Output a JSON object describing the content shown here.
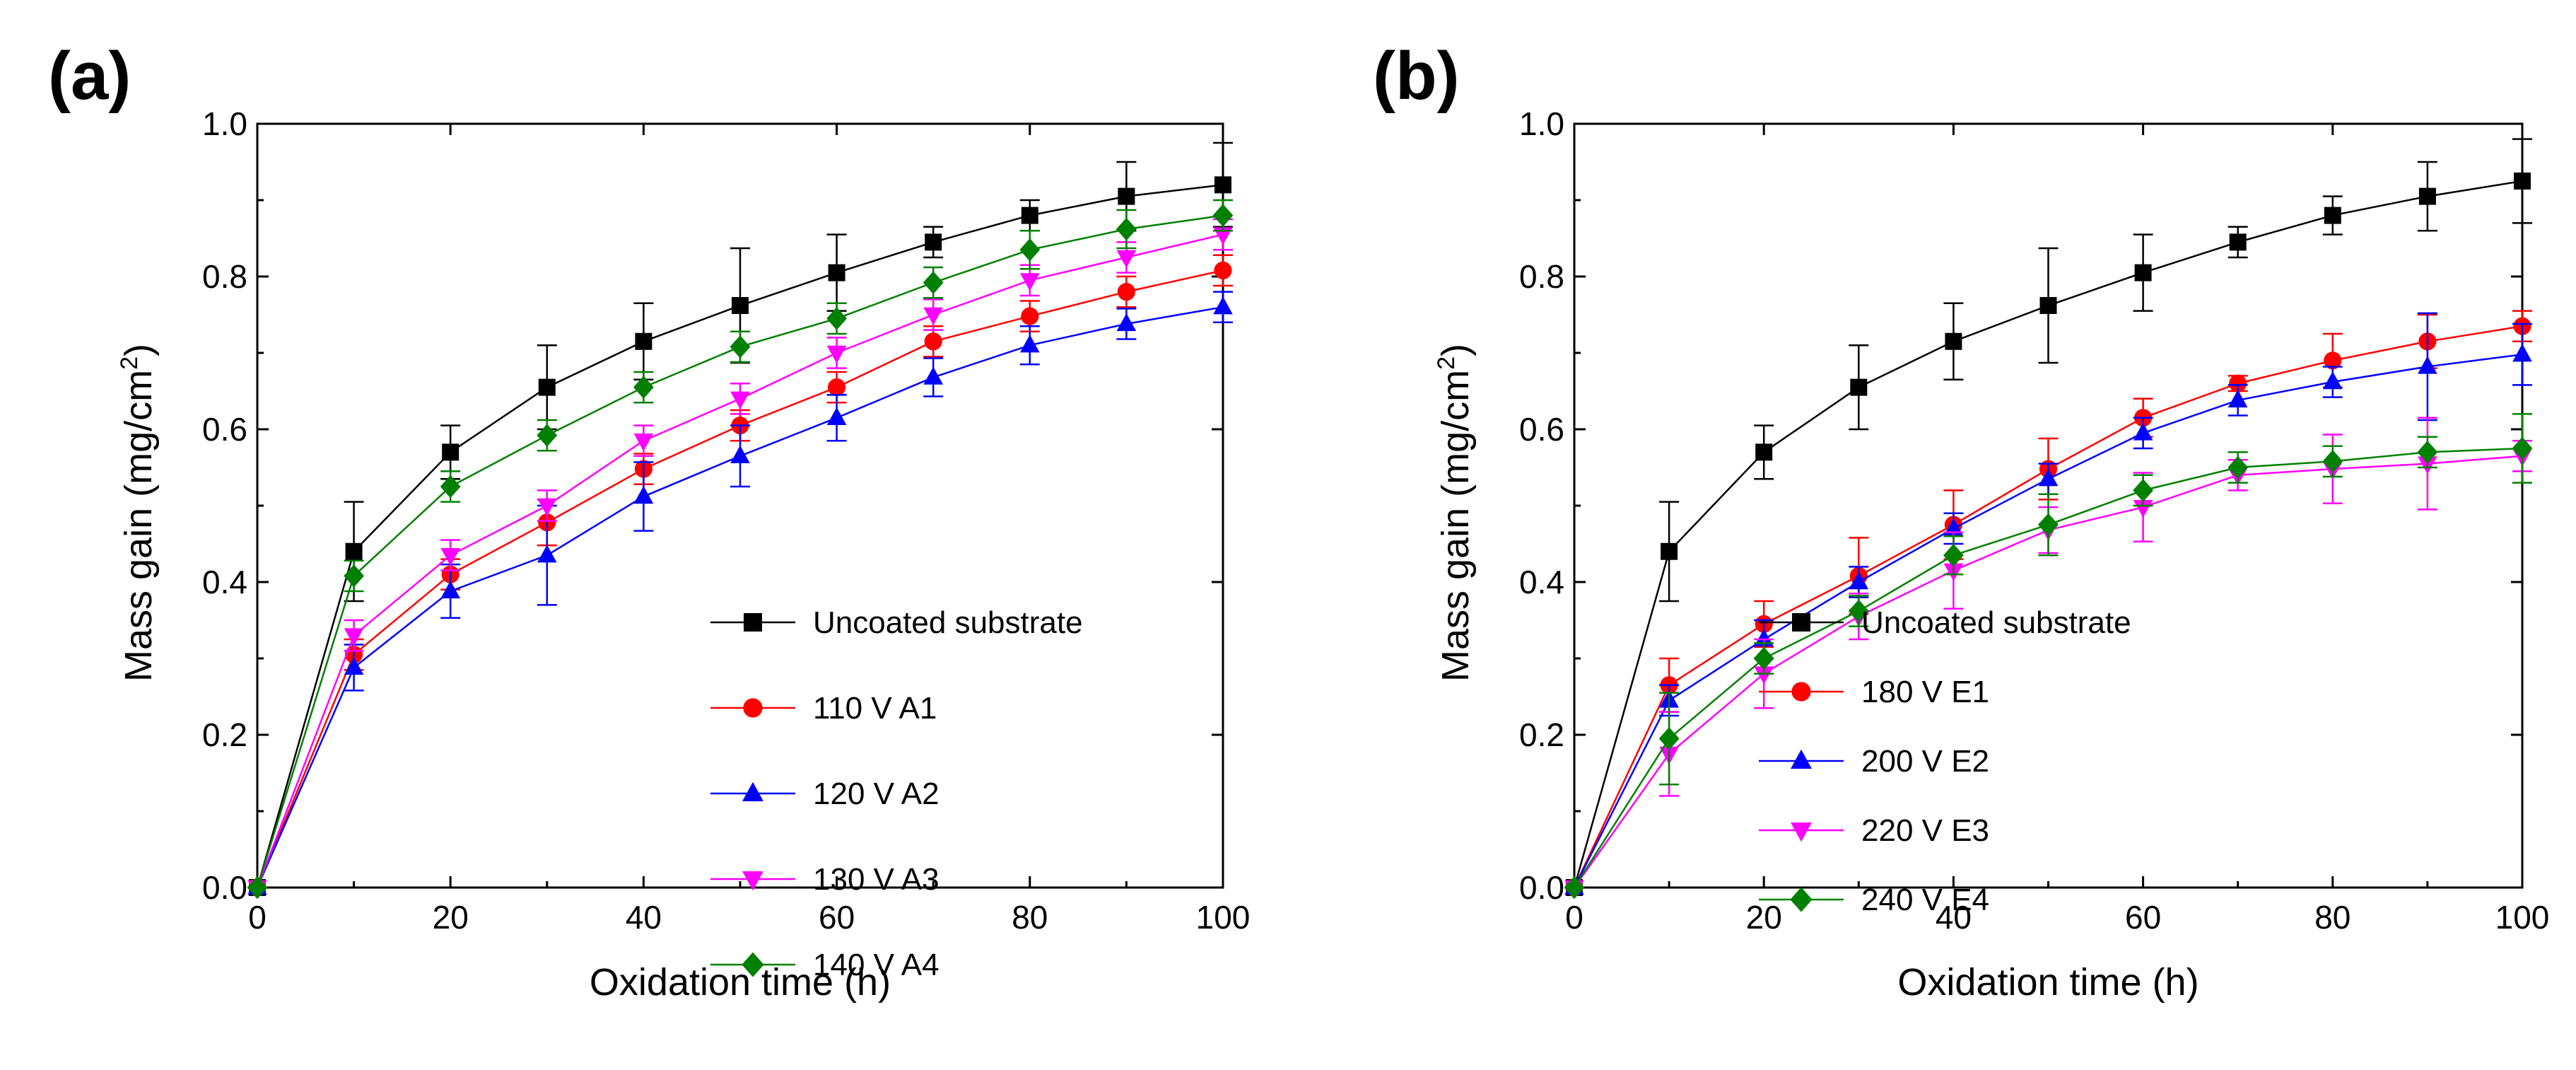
{
  "chart_data": [
    {
      "type": "line",
      "panel_label": "(a)",
      "xlabel": "Oxidation time (h)",
      "ylabel_main": "Mass gain (mg/cm",
      "ylabel_sup": "2",
      "ylabel_close": ")",
      "xlim": [
        0,
        100
      ],
      "ylim": [
        0.0,
        1.0
      ],
      "xticks": [
        "0",
        "20",
        "40",
        "60",
        "80",
        "100"
      ],
      "yticks": [
        "0.0",
        "0.2",
        "0.4",
        "0.6",
        "0.8",
        "1.0"
      ],
      "legend_position": "center-right",
      "x": [
        0,
        10,
        20,
        30,
        40,
        50,
        60,
        70,
        80,
        90,
        100
      ],
      "series": [
        {
          "name": "Uncoated substrate",
          "color": "#000000",
          "marker": "square",
          "values": [
            0.0,
            0.44,
            0.57,
            0.655,
            0.715,
            0.762,
            0.805,
            0.845,
            0.88,
            0.905,
            0.92
          ],
          "errors": [
            0,
            0.065,
            0.035,
            0.055,
            0.05,
            0.075,
            0.05,
            0.02,
            0.02,
            0.045,
            0.055
          ]
        },
        {
          "name": "110 V A1",
          "color": "#ff0000",
          "marker": "circle",
          "values": [
            0.0,
            0.305,
            0.41,
            0.478,
            0.548,
            0.605,
            0.655,
            0.715,
            0.748,
            0.78,
            0.808
          ],
          "errors": [
            0,
            0.02,
            0.02,
            0.03,
            0.02,
            0.02,
            0.02,
            0.02,
            0.02,
            0.02,
            0.02
          ]
        },
        {
          "name": "120 V A2",
          "color": "#0000ff",
          "marker": "triangle-up",
          "values": [
            0.0,
            0.288,
            0.388,
            0.435,
            0.512,
            0.565,
            0.615,
            0.668,
            0.71,
            0.738,
            0.76
          ],
          "errors": [
            0,
            0.03,
            0.035,
            0.065,
            0.045,
            0.04,
            0.03,
            0.025,
            0.025,
            0.02,
            0.02
          ]
        },
        {
          "name": "130 V A3",
          "color": "#ff00ff",
          "marker": "triangle-down",
          "values": [
            0.0,
            0.33,
            0.435,
            0.5,
            0.585,
            0.64,
            0.7,
            0.75,
            0.795,
            0.825,
            0.855
          ],
          "errors": [
            0,
            0.02,
            0.02,
            0.02,
            0.02,
            0.02,
            0.02,
            0.02,
            0.02,
            0.02,
            0.02
          ]
        },
        {
          "name": "140 V A4",
          "color": "#008000",
          "marker": "diamond",
          "values": [
            0.0,
            0.408,
            0.525,
            0.592,
            0.655,
            0.708,
            0.745,
            0.792,
            0.835,
            0.862,
            0.88
          ],
          "errors": [
            0,
            0.02,
            0.02,
            0.02,
            0.02,
            0.02,
            0.02,
            0.02,
            0.025,
            0.025,
            0.02
          ]
        }
      ]
    },
    {
      "type": "line",
      "panel_label": "(b)",
      "xlabel": "Oxidation time (h)",
      "ylabel_main": "Mass gain (mg/cm",
      "ylabel_sup": "2",
      "ylabel_close": ")",
      "xlim": [
        0,
        100
      ],
      "ylim": [
        0.0,
        1.0
      ],
      "xticks": [
        "0",
        "20",
        "40",
        "60",
        "80",
        "100"
      ],
      "yticks": [
        "0.0",
        "0.2",
        "0.4",
        "0.6",
        "0.8",
        "1.0"
      ],
      "legend_position": "lower-right",
      "x": [
        0,
        10,
        20,
        30,
        40,
        50,
        60,
        70,
        80,
        90,
        100
      ],
      "series": [
        {
          "name": "Uncoated substrate",
          "color": "#000000",
          "marker": "square",
          "values": [
            0.0,
            0.44,
            0.57,
            0.655,
            0.715,
            0.762,
            0.805,
            0.845,
            0.88,
            0.905,
            0.925
          ],
          "errors": [
            0,
            0.065,
            0.035,
            0.055,
            0.05,
            0.075,
            0.05,
            0.02,
            0.025,
            0.045,
            0.055
          ]
        },
        {
          "name": "180 V E1",
          "color": "#ff0000",
          "marker": "circle",
          "values": [
            0.0,
            0.265,
            0.345,
            0.408,
            0.475,
            0.548,
            0.615,
            0.66,
            0.69,
            0.715,
            0.735
          ],
          "errors": [
            0,
            0.035,
            0.03,
            0.05,
            0.045,
            0.04,
            0.025,
            0.01,
            0.035,
            0.035,
            0.02
          ]
        },
        {
          "name": "200 V E2",
          "color": "#0000ff",
          "marker": "triangle-up",
          "values": [
            0.0,
            0.245,
            0.325,
            0.4,
            0.47,
            0.535,
            0.595,
            0.638,
            0.662,
            0.682,
            0.698
          ],
          "errors": [
            0,
            0.02,
            0.025,
            0.02,
            0.02,
            0.02,
            0.02,
            0.02,
            0.02,
            0.07,
            0.04
          ]
        },
        {
          "name": "220 V E3",
          "color": "#ff00ff",
          "marker": "triangle-down",
          "values": [
            0.0,
            0.175,
            0.28,
            0.355,
            0.415,
            0.468,
            0.498,
            0.54,
            0.548,
            0.555,
            0.565
          ],
          "errors": [
            0,
            0.055,
            0.045,
            0.03,
            0.05,
            0.03,
            0.045,
            0.02,
            0.045,
            0.06,
            0.02
          ]
        },
        {
          "name": "240 V E4",
          "color": "#008000",
          "marker": "diamond",
          "values": [
            0.0,
            0.195,
            0.3,
            0.362,
            0.435,
            0.475,
            0.52,
            0.55,
            0.558,
            0.57,
            0.575
          ],
          "errors": [
            0,
            0.06,
            0.02,
            0.02,
            0.025,
            0.04,
            0.02,
            0.02,
            0.02,
            0.02,
            0.045
          ]
        }
      ]
    }
  ]
}
